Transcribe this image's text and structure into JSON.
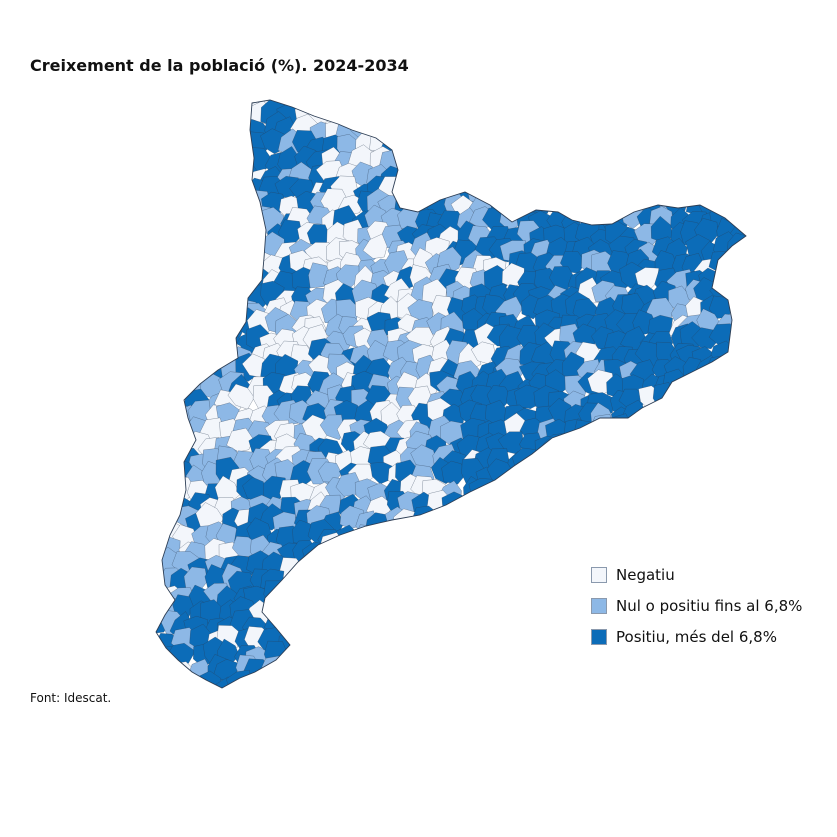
{
  "title": "Creixement de la població (%). 2024-2034",
  "source": "Font: Idescat.",
  "legend": [
    {
      "key": "negative",
      "label": "Negatiu",
      "color": "#f3f6fb"
    },
    {
      "key": "low",
      "label": "Nul o positiu fins al 6,8%",
      "color": "#8db8e6"
    },
    {
      "key": "high",
      "label": "Positiu, més del 6,8%",
      "color": "#0c6cb8"
    }
  ],
  "colors": {
    "negative": "#f3f6fb",
    "low": "#8db8e6",
    "high": "#0c6cb8",
    "border": "#2d3e55",
    "outline": "#2d3e55"
  }
}
